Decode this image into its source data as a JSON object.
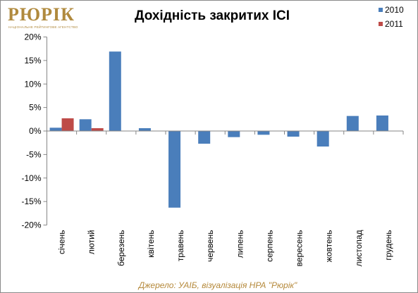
{
  "logo": {
    "word": "РЮРІК",
    "tagline": "НАЦІОНАЛЬНЕ РЕЙТИНГОВЕ АГЕНТСТВО"
  },
  "chart_data": {
    "type": "bar",
    "title": "Дохідність закритих ІСІ",
    "categories": [
      "січень",
      "лютий",
      "березень",
      "квітень",
      "травень",
      "червень",
      "липень",
      "серпень",
      "вересень",
      "жовтень",
      "листопад",
      "грудень"
    ],
    "series": [
      {
        "name": "2010",
        "color": "#4a7ebb",
        "values": [
          0.7,
          2.5,
          16.9,
          0.6,
          -16.3,
          -2.7,
          -1.3,
          -0.8,
          -1.2,
          -3.3,
          3.2,
          3.3
        ]
      },
      {
        "name": "2011",
        "color": "#be4b48",
        "values": [
          2.7,
          0.6,
          null,
          null,
          null,
          null,
          null,
          null,
          null,
          null,
          null,
          null
        ]
      }
    ],
    "ylim": [
      -20,
      20
    ],
    "yticks": [
      20,
      15,
      10,
      5,
      0,
      -5,
      -10,
      -15,
      -20
    ],
    "ytick_labels": [
      "20%",
      "15%",
      "10%",
      "5%",
      "0%",
      "-5%",
      "-10%",
      "-15%",
      "-20%"
    ],
    "legend_position": "top-right",
    "grid": false
  },
  "source_note": "Джерело: УАІБ, візуалізація НРА \"Рюрік\""
}
